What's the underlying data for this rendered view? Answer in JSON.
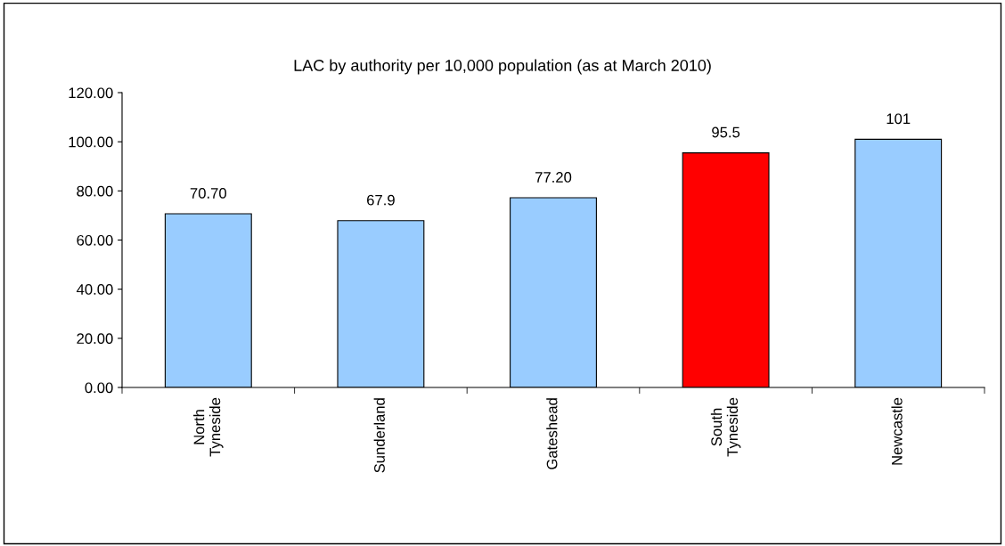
{
  "chart_data": {
    "type": "bar",
    "title": "LAC by authority per 10,000 population (as at March 2010)",
    "categories": [
      "North\nTyneside",
      "Sunderland",
      "Gateshead",
      "South\nTyneside",
      "Newcastle"
    ],
    "values": [
      70.7,
      67.9,
      77.2,
      95.5,
      101
    ],
    "colors": [
      "#99ccff",
      "#99ccff",
      "#99ccff",
      "#ff0000",
      "#99ccff"
    ],
    "value_labels": [
      "70.70",
      "67.9",
      "77.20",
      "95.5",
      "101"
    ],
    "ylim": [
      0,
      120
    ],
    "yticks": [
      {
        "value": 0,
        "label": "0.00"
      },
      {
        "value": 20,
        "label": "20.00"
      },
      {
        "value": 40,
        "label": "40.00"
      },
      {
        "value": 60,
        "label": "60.00"
      },
      {
        "value": 80,
        "label": "80.00"
      },
      {
        "value": 100,
        "label": "100.00"
      },
      {
        "value": 120,
        "label": "120.00"
      }
    ],
    "grid": false,
    "legend": false
  }
}
